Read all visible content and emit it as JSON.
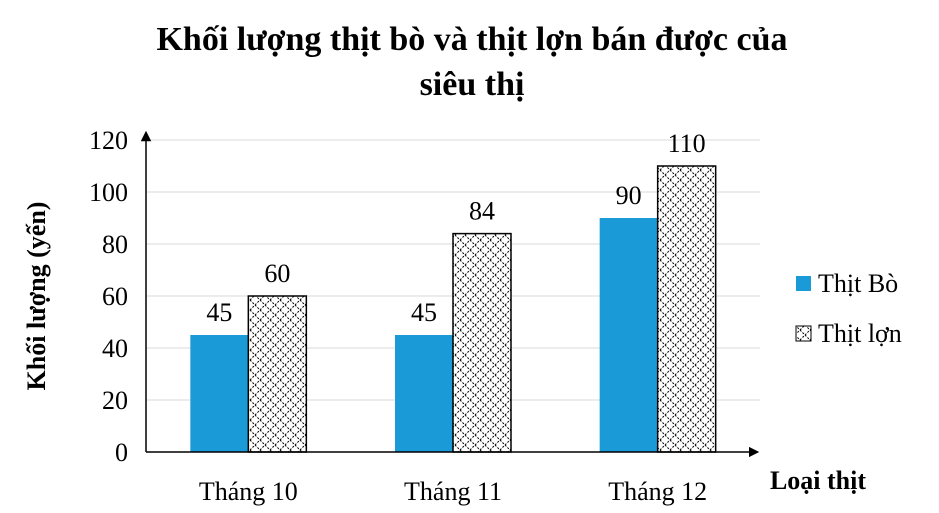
{
  "chart_data": {
    "type": "bar",
    "title_lines": [
      "Khối lượng thịt bò và thịt lợn bán được của",
      "siêu thị"
    ],
    "xlabel": "Loại thịt",
    "ylabel": "Khối lượng (yến)",
    "categories": [
      "Tháng 10",
      "Tháng 11",
      "Tháng 12"
    ],
    "series": [
      {
        "name": "Thịt Bò",
        "values": [
          45,
          45,
          90
        ],
        "color": "#1a9bd7",
        "pattern": "solid"
      },
      {
        "name": "Thịt lợn",
        "values": [
          60,
          84,
          110
        ],
        "color": "#000000",
        "pattern": "diagonal-crosshatch"
      }
    ],
    "ylim": [
      0,
      120
    ],
    "yticks": [
      0,
      20,
      40,
      60,
      80,
      100,
      120
    ],
    "grid": true,
    "legend_position": "right"
  }
}
